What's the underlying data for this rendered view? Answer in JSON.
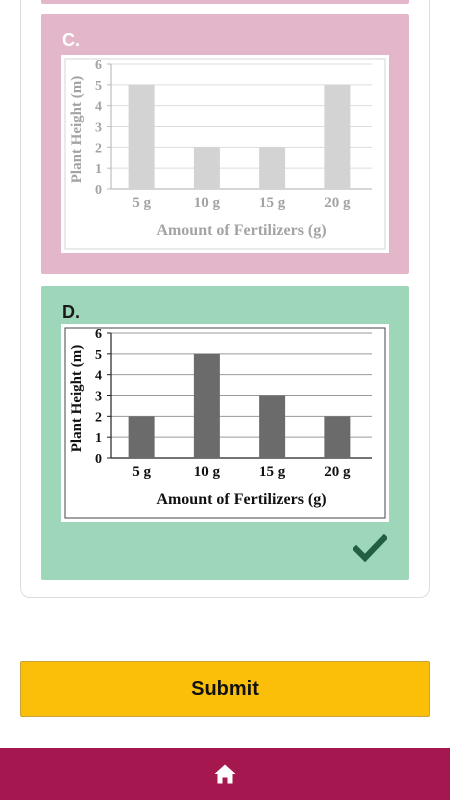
{
  "options": [
    {
      "label": "C.",
      "state": "faded",
      "correct": false,
      "chart_data": {
        "type": "bar",
        "categories": [
          "5 g",
          "10 g",
          "15 g",
          "20 g"
        ],
        "values": [
          5,
          2,
          2,
          5
        ],
        "ylabel": "Plant Height (m)",
        "xlabel": "Amount of Fertilizers (g)",
        "yticks": [
          "0",
          "1",
          "2",
          "3",
          "4",
          "5",
          "6"
        ],
        "ylim": [
          0,
          6
        ],
        "grid": true,
        "bar_color": "#d3d3d3"
      }
    },
    {
      "label": "D.",
      "state": "selected",
      "correct": true,
      "chart_data": {
        "type": "bar",
        "categories": [
          "5 g",
          "10 g",
          "15 g",
          "20 g"
        ],
        "values": [
          2,
          5,
          3,
          2
        ],
        "ylabel": "Plant Height (m)",
        "xlabel": "Amount of Fertilizers (g)",
        "yticks": [
          "0",
          "1",
          "2",
          "3",
          "4",
          "5",
          "6"
        ],
        "ylim": [
          0,
          6
        ],
        "grid": true,
        "bar_color": "#6b6b6b"
      }
    }
  ],
  "submit": {
    "label": "Submit"
  },
  "nav": {
    "home_icon": "home-icon"
  },
  "colors": {
    "option_c_bg": "#e3b6c9",
    "option_d_bg": "#9dd6b8",
    "check": "#215e42",
    "submit_bg": "#fbbf0a",
    "bottom_bar": "#a5184f"
  }
}
